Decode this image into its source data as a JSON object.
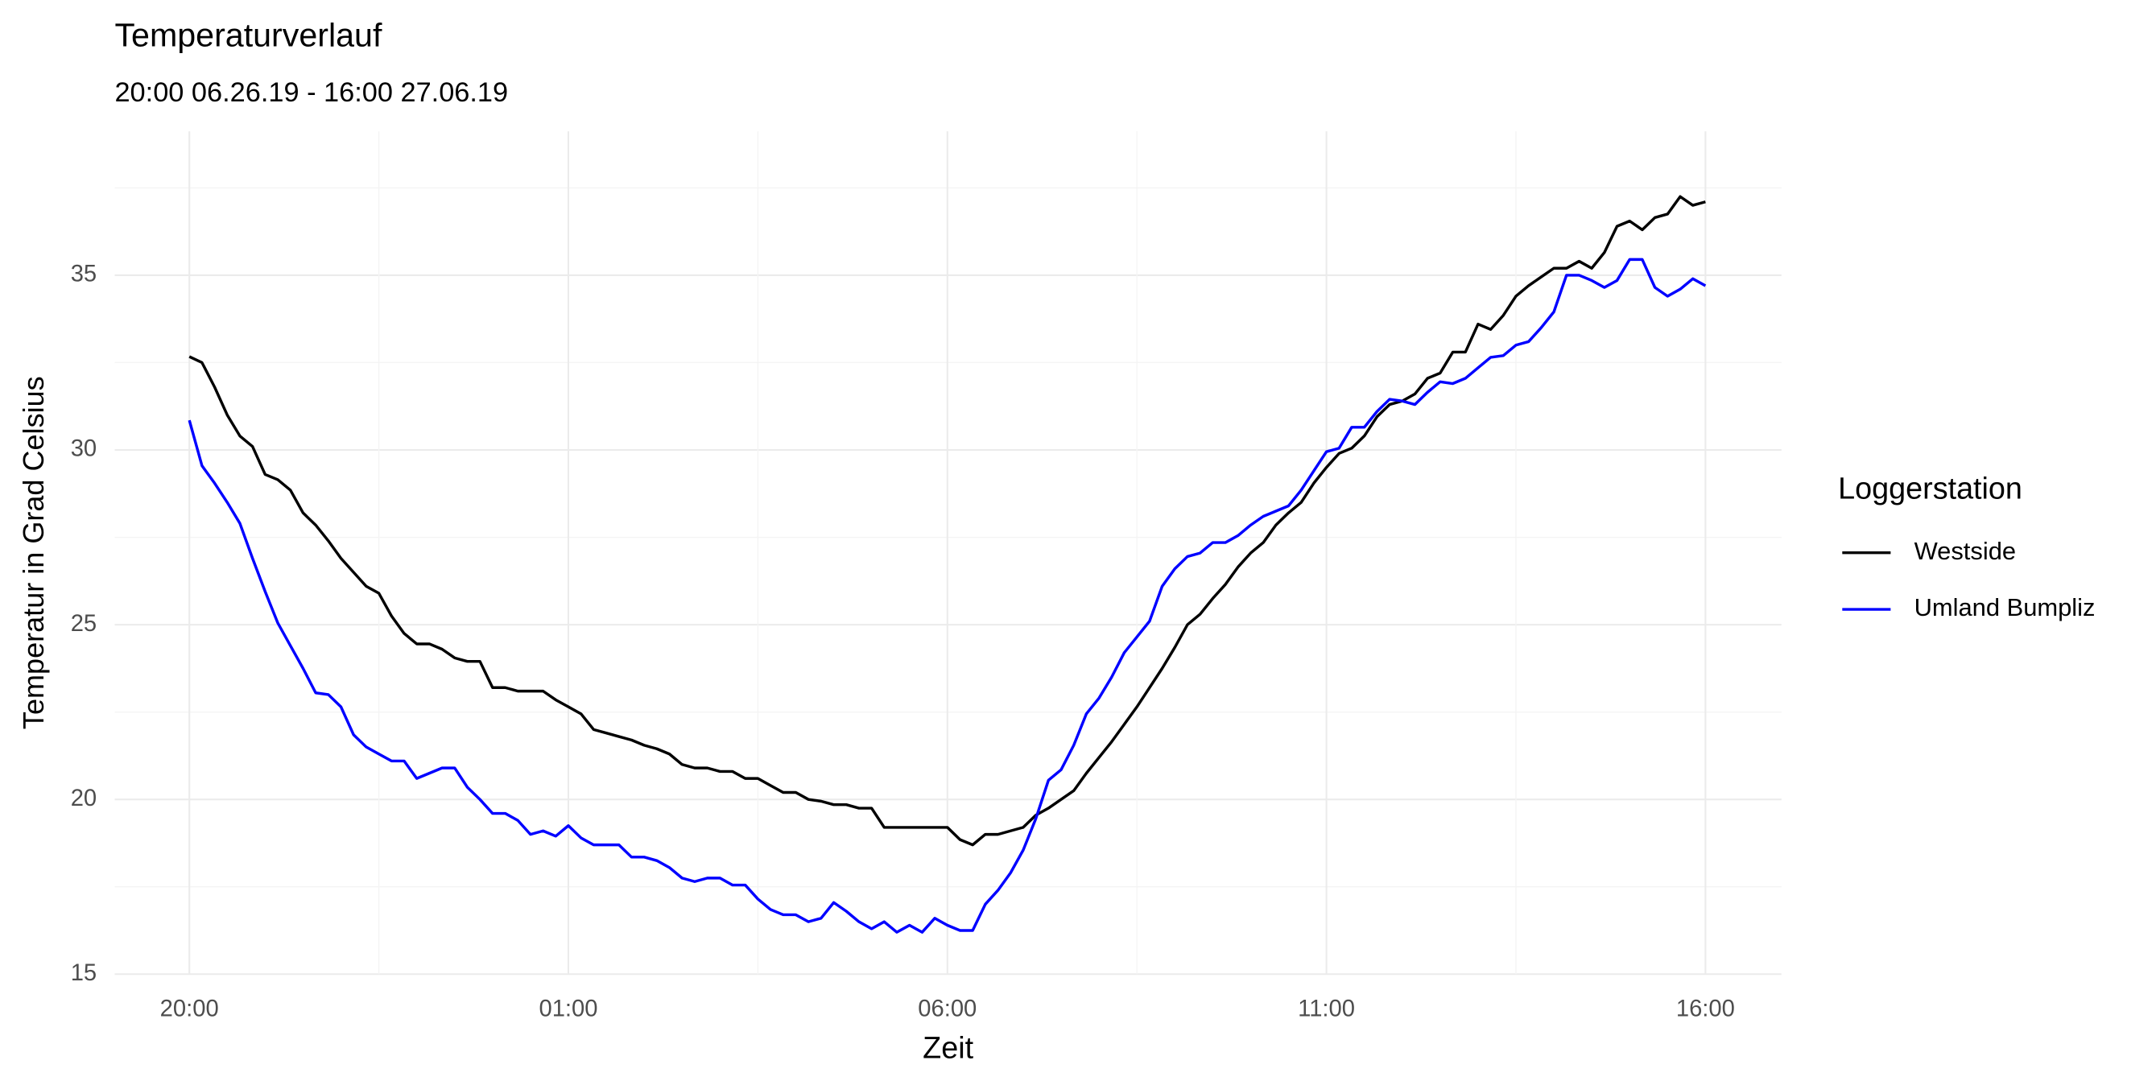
{
  "chart_data": {
    "type": "line",
    "title": "Temperaturverlauf",
    "subtitle": "20:00 06.26.19  - 16:00 27.06.19",
    "x_label": "Zeit",
    "y_label": "Temperatur in Grad Celsius",
    "legend_title": "Loggerstation",
    "legend": "right",
    "grid": true,
    "x": [
      "20:00",
      "20:10",
      "20:20",
      "20:30",
      "20:40",
      "20:50",
      "21:00",
      "21:10",
      "21:20",
      "21:30",
      "21:40",
      "21:50",
      "22:00",
      "22:10",
      "22:20",
      "22:30",
      "22:40",
      "22:50",
      "23:00",
      "23:10",
      "23:20",
      "23:30",
      "23:40",
      "23:50",
      "00:00",
      "00:10",
      "00:20",
      "00:30",
      "00:40",
      "00:50",
      "01:00",
      "01:10",
      "01:20",
      "01:30",
      "01:40",
      "01:50",
      "02:00",
      "02:10",
      "02:20",
      "02:30",
      "02:40",
      "02:50",
      "03:00",
      "03:10",
      "03:20",
      "03:30",
      "03:40",
      "03:50",
      "04:00",
      "04:10",
      "04:20",
      "04:30",
      "04:40",
      "04:50",
      "05:00",
      "05:10",
      "05:20",
      "05:30",
      "05:40",
      "05:50",
      "06:00",
      "06:10",
      "06:20",
      "06:30",
      "06:40",
      "06:50",
      "07:00",
      "07:10",
      "07:20",
      "07:30",
      "07:40",
      "07:50",
      "08:00",
      "08:10",
      "08:20",
      "08:30",
      "08:40",
      "08:50",
      "09:00",
      "09:10",
      "09:20",
      "09:30",
      "09:40",
      "09:50",
      "10:00",
      "10:10",
      "10:20",
      "10:30",
      "10:40",
      "10:50",
      "11:00",
      "11:10",
      "11:20",
      "11:30",
      "11:40",
      "11:50",
      "12:00",
      "12:10",
      "12:20",
      "12:30",
      "12:40",
      "12:50",
      "13:00",
      "13:10",
      "13:20",
      "13:30",
      "13:40",
      "13:50",
      "14:00",
      "14:10",
      "14:20",
      "14:30",
      "14:40",
      "14:50",
      "15:00",
      "15:10",
      "15:20",
      "15:30",
      "15:40",
      "15:50",
      "16:00"
    ],
    "xticks": [
      "20:00",
      "01:00",
      "06:00",
      "11:00",
      "16:00"
    ],
    "ylim": [
      15,
      39
    ],
    "yticks": [
      15,
      20,
      25,
      30,
      35
    ],
    "series": [
      {
        "name": "Westside",
        "color": "#000000",
        "values": [
          32.67,
          32.5,
          31.8,
          31.0,
          30.4,
          30.1,
          29.3,
          29.15,
          28.85,
          28.2,
          27.85,
          27.4,
          26.9,
          26.5,
          26.1,
          25.9,
          25.25,
          24.75,
          24.45,
          24.45,
          24.3,
          24.05,
          23.95,
          23.95,
          23.2,
          23.2,
          23.1,
          23.1,
          23.1,
          22.85,
          22.65,
          22.45,
          22.0,
          21.9,
          21.8,
          21.7,
          21.55,
          21.45,
          21.3,
          21.0,
          20.9,
          20.9,
          20.8,
          20.8,
          20.6,
          20.6,
          20.4,
          20.2,
          20.2,
          20.0,
          19.95,
          19.85,
          19.85,
          19.75,
          19.75,
          19.2,
          19.2,
          19.2,
          19.2,
          19.2,
          19.2,
          18.85,
          18.7,
          19.0,
          19.0,
          19.1,
          19.2,
          19.55,
          19.75,
          20.0,
          20.25,
          20.75,
          21.2,
          21.65,
          22.15,
          22.65,
          23.2,
          23.75,
          24.35,
          25.0,
          25.3,
          25.75,
          26.15,
          26.65,
          27.05,
          27.35,
          27.85,
          28.2,
          28.5,
          29.05,
          29.5,
          29.9,
          30.05,
          30.4,
          30.95,
          31.3,
          31.4,
          31.6,
          32.05,
          32.2,
          32.8,
          32.8,
          33.6,
          33.45,
          33.85,
          34.4,
          34.7,
          34.95,
          35.2,
          35.2,
          35.4,
          35.2,
          35.65,
          36.4,
          36.55,
          36.3,
          36.65,
          36.75,
          37.25,
          37.0,
          37.1
        ]
      },
      {
        "name": "Umland Bumpliz",
        "color": "#0000ff",
        "values": [
          30.85,
          29.55,
          29.05,
          28.5,
          27.9,
          26.9,
          25.95,
          25.05,
          24.4,
          23.75,
          23.05,
          23.0,
          22.65,
          21.85,
          21.5,
          21.3,
          21.1,
          21.1,
          20.6,
          20.75,
          20.9,
          20.9,
          20.35,
          20.0,
          19.6,
          19.6,
          19.4,
          19.0,
          19.1,
          18.95,
          19.25,
          18.9,
          18.7,
          18.7,
          18.7,
          18.35,
          18.35,
          18.25,
          18.05,
          17.75,
          17.65,
          17.75,
          17.75,
          17.55,
          17.55,
          17.15,
          16.85,
          16.7,
          16.7,
          16.5,
          16.6,
          17.05,
          16.8,
          16.5,
          16.3,
          16.5,
          16.2,
          16.4,
          16.2,
          16.6,
          16.4,
          16.25,
          16.25,
          17.0,
          17.4,
          17.9,
          18.55,
          19.45,
          20.55,
          20.85,
          21.55,
          22.45,
          22.9,
          23.5,
          24.2,
          24.65,
          25.1,
          26.1,
          26.6,
          26.95,
          27.05,
          27.35,
          27.35,
          27.55,
          27.85,
          28.1,
          28.25,
          28.4,
          28.85,
          29.4,
          29.95,
          30.05,
          30.65,
          30.65,
          31.1,
          31.45,
          31.4,
          31.3,
          31.65,
          31.95,
          31.9,
          32.05,
          32.35,
          32.65,
          32.7,
          33.0,
          33.1,
          33.5,
          33.95,
          35.0,
          35.0,
          34.85,
          34.65,
          34.85,
          35.45,
          35.45,
          34.65,
          34.4,
          34.6,
          34.9,
          34.7
        ]
      }
    ]
  }
}
